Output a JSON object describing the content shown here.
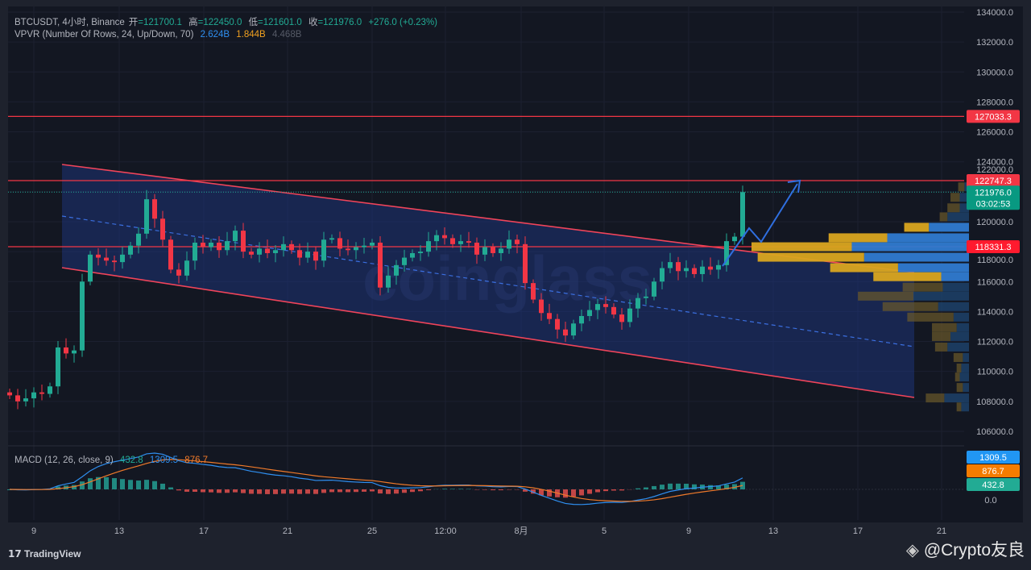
{
  "header": {
    "symbol": "BTCUSDT, 4小时, Binance",
    "open_label": "开",
    "open": "=121700.1",
    "high_label": "高",
    "high": "=122450.0",
    "low_label": "低",
    "low": "=121601.0",
    "close_label": "收",
    "close": "=121976.0",
    "change": "+276.0 (+0.23%)"
  },
  "vpvr_legend": {
    "name": "VPVR (Number Of Rows, 24, Up/Down, 70)",
    "up": "2.624B",
    "down": "1.844B",
    "total": "4.468B"
  },
  "macd_legend": {
    "name": "MACD (12, 26, close, 9)",
    "hist": "432.8",
    "macd": "1309.5",
    "signal": "876.7"
  },
  "macd_axis": {
    "macd_tag": "1309.5",
    "signal_tag": "876.7",
    "hist_tag": "432.8",
    "zero": "0.0"
  },
  "price_tags": {
    "level_high": "127033.3",
    "level_mid": "122747.3",
    "last_price": "121976.0",
    "countdown": "03:02:53",
    "level_low": "118331.3"
  },
  "footer": {
    "brand": "TradingView",
    "watermark": "@Crypto友良",
    "chart_watermark": "coinglass"
  },
  "colors": {
    "up": "#22ab94",
    "down": "#f23645",
    "level": "#f23645",
    "channel": "#f0445a",
    "arrow": "#2f6fe0",
    "macd": "#2f8ff0",
    "signal": "#f07a2a"
  },
  "chart_data": {
    "type": "candlestick",
    "title": "BTCUSDT 4h",
    "yaxis_ticks": [
      "134000.0",
      "132000.0",
      "130000.0",
      "128000.0",
      "126000.0",
      "124000.0",
      "122000.0",
      "120000.0",
      "118000.0",
      "116000.0",
      "114000.0",
      "112000.0",
      "110000.0",
      "108000.0",
      "106000.0"
    ],
    "ylim": [
      106000,
      134000
    ],
    "xaxis_ticks": [
      "9",
      "13",
      "17",
      "21",
      "25",
      "12:00",
      "8月",
      "5",
      "9",
      "13",
      "17",
      "21"
    ],
    "horizontal_levels": [
      127033.3,
      122747.3,
      118331.3
    ],
    "closes": [
      108400,
      108000,
      108200,
      108600,
      108500,
      109000,
      111600,
      111200,
      111400,
      116000,
      117800,
      117600,
      117400,
      117300,
      117800,
      118400,
      119200,
      121500,
      120200,
      118800,
      116800,
      116400,
      117400,
      118600,
      118300,
      118600,
      118100,
      118700,
      119400,
      118000,
      117800,
      118200,
      117900,
      118100,
      118500,
      118100,
      117600,
      118000,
      117400,
      118800,
      118900,
      118200,
      118100,
      118300,
      118400,
      118600,
      115600,
      116400,
      117100,
      117600,
      117900,
      118000,
      118700,
      119100,
      118900,
      118500,
      118700,
      118600,
      117800,
      118300,
      117900,
      118200,
      118800,
      118500,
      115900,
      114800,
      113900,
      113500,
      112800,
      112400,
      113200,
      113700,
      114100,
      114500,
      114300,
      113800,
      113300,
      114200,
      114900,
      115000,
      116000,
      116900,
      117300,
      116700,
      116900,
      116500,
      117000,
      116800,
      117100,
      118700,
      119000,
      121976
    ],
    "vpvr_rows": [
      {
        "price": 122300,
        "up": 3,
        "down": 4
      },
      {
        "price": 121600,
        "up": 6,
        "down": 6
      },
      {
        "price": 120900,
        "up": 6,
        "down": 8
      },
      {
        "price": 120300,
        "up": 14,
        "down": 5
      },
      {
        "price": 119600,
        "up": 26,
        "down": 16
      },
      {
        "price": 118900,
        "up": 53,
        "down": 38
      },
      {
        "price": 118300,
        "up": 76,
        "down": 65
      },
      {
        "price": 117600,
        "up": 68,
        "down": 69
      },
      {
        "price": 116900,
        "up": 46,
        "down": 44
      },
      {
        "price": 116300,
        "up": 18,
        "down": 44
      },
      {
        "price": 115600,
        "up": 17,
        "down": 26
      },
      {
        "price": 115000,
        "up": 36,
        "down": 36
      },
      {
        "price": 114300,
        "up": 20,
        "down": 36
      },
      {
        "price": 113600,
        "up": 10,
        "down": 30
      },
      {
        "price": 112900,
        "up": 8,
        "down": 16
      },
      {
        "price": 112300,
        "up": 12,
        "down": 12
      },
      {
        "price": 111600,
        "up": 14,
        "down": 8
      },
      {
        "price": 110900,
        "up": 4,
        "down": 6
      },
      {
        "price": 110200,
        "up": 5,
        "down": 3
      },
      {
        "price": 109600,
        "up": 6,
        "down": 3
      },
      {
        "price": 108900,
        "up": 4,
        "down": 4
      },
      {
        "price": 108200,
        "up": 16,
        "down": 12
      },
      {
        "price": 107600,
        "up": 5,
        "down": 3
      }
    ]
  }
}
